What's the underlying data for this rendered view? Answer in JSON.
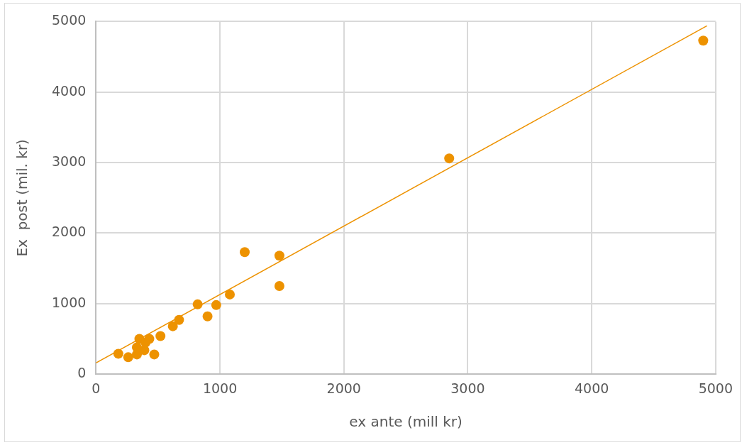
{
  "chart_data": {
    "type": "scatter",
    "xlabel": "ex ante (mill kr)",
    "ylabel": "Ex  post (mil. kr)",
    "xlim": [
      0,
      5000
    ],
    "xticks": [
      0,
      1000,
      2000,
      3000,
      4000,
      5000
    ],
    "ylim": [
      0,
      5000
    ],
    "yticks": [
      0,
      1000,
      2000,
      3000,
      4000,
      5000
    ],
    "grid": true,
    "series": [
      {
        "color": "#ed9200",
        "marker": "circle",
        "x": [
          180,
          260,
          330,
          350,
          400,
          430,
          390,
          330,
          470,
          520,
          620,
          670,
          820,
          900,
          970,
          1080,
          1200,
          1480,
          1480,
          2850,
          4900
        ],
        "values": [
          290,
          240,
          280,
          500,
          450,
          500,
          340,
          380,
          280,
          540,
          680,
          770,
          990,
          820,
          980,
          1130,
          1730,
          1680,
          1250,
          3060,
          4730
        ]
      },
      {
        "type": "line",
        "color": "#ed9200",
        "x": [
          0,
          4930
        ],
        "values": [
          160,
          4940
        ]
      }
    ]
  }
}
